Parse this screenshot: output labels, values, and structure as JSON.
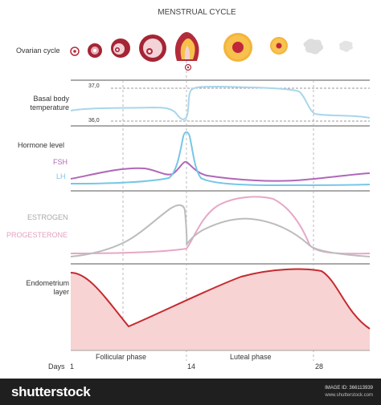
{
  "title": "MENSTRUAL CYCLE",
  "rows": {
    "ovarian_cycle": "Ovarian cycle",
    "basal_temp": "Basal body temperature",
    "temp_high": "37,0",
    "temp_low": "36,0",
    "hormone_level": "Hormone level",
    "fsh": "FSH",
    "lh": "LH",
    "estrogen": "ESTROGEN",
    "progesterone": "PROGESTERONE",
    "endometrium": "Endometrium layer"
  },
  "axis": {
    "days_label": "Days",
    "ticks": [
      "1",
      "14",
      "28"
    ],
    "phases": [
      "Follicular phase",
      "Luteal phase"
    ]
  },
  "colors": {
    "temperature": "#a9d6ea",
    "fsh": "#b067b8",
    "lh": "#77c6e8",
    "estrogen": "#bcbcbc",
    "progesterone": "#e7a7c7",
    "endometrium_fill": "#f7d3d3",
    "endometrium_line": "#c42a2f",
    "follicle_red": "#b32b3b",
    "corpus_luteum": "#f4b43a"
  },
  "icons": [
    "follicle-1-icon",
    "follicle-2-icon",
    "follicle-3-icon",
    "follicle-4-icon",
    "ovulation-icon",
    "corpus-luteum-1-icon",
    "corpus-luteum-2-icon",
    "corpus-albicans-1-icon",
    "corpus-albicans-2-icon"
  ],
  "footer": {
    "brand": "shutterstock",
    "image_id": "IMAGE ID: 366113939",
    "site": "www.shutterstock.com"
  }
}
